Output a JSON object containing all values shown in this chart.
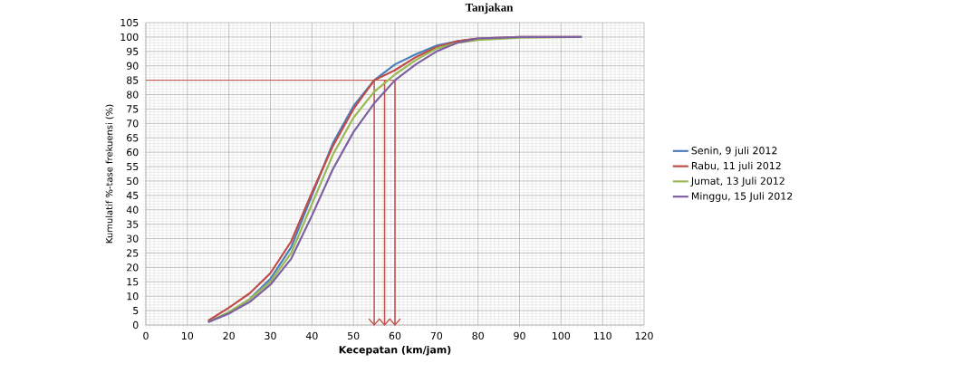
{
  "chart_data": {
    "type": "line",
    "title": "Tanjakan",
    "xlabel": "Kecepatan (km/jam)",
    "ylabel": "Kumulatif %-tase frekuensi (%)",
    "x": [
      15,
      20,
      25,
      30,
      35,
      40,
      45,
      50,
      55,
      60,
      65,
      70,
      75,
      80,
      90,
      105
    ],
    "series": [
      {
        "name": "Senin, 9 juli 2012",
        "color": "#4a7ebb",
        "values": [
          1,
          4,
          9,
          16,
          27,
          45,
          63,
          76,
          85,
          90.5,
          94,
          97,
          98.5,
          99.5,
          null,
          null
        ]
      },
      {
        "name": "Rabu, 11 juli 2012",
        "color": "#be4b48",
        "values": [
          1.5,
          6,
          11,
          18,
          29,
          46,
          62,
          75,
          85,
          88.5,
          93,
          96.5,
          98.5,
          99.5,
          100,
          100
        ]
      },
      {
        "name": "Jumat, 13 Juli 2012",
        "color": "#98b954",
        "values": [
          1,
          4.5,
          9,
          15,
          25,
          42,
          59,
          72,
          81,
          87,
          92,
          96,
          98,
          99,
          99.8,
          100
        ]
      },
      {
        "name": "Minggu, 15 Juli 2012",
        "color": "#7d60a0",
        "values": [
          1,
          4,
          8,
          14,
          23,
          38,
          54,
          67,
          77,
          85,
          90.5,
          95,
          98,
          99.5,
          100,
          100
        ]
      }
    ],
    "xlim": [
      0,
      120
    ],
    "xticks": [
      0,
      10,
      20,
      30,
      40,
      50,
      60,
      70,
      80,
      90,
      100,
      110,
      120
    ],
    "ylim": [
      0,
      105
    ],
    "yticks": [
      0,
      5,
      10,
      15,
      20,
      25,
      30,
      35,
      40,
      45,
      50,
      55,
      60,
      65,
      70,
      75,
      80,
      85,
      90,
      95,
      100,
      105
    ],
    "ref_lines": [
      {
        "axis": "y",
        "value": 85,
        "color": "#c0504d"
      },
      {
        "axis": "x",
        "value": 55,
        "color": "#c0504d"
      },
      {
        "axis": "x",
        "value": 57.5,
        "color": "#c0504d"
      },
      {
        "axis": "x",
        "value": 60,
        "color": "#c0504d"
      }
    ],
    "grid": true,
    "legend": "right",
    "marker": "none",
    "line_style": "solid"
  }
}
